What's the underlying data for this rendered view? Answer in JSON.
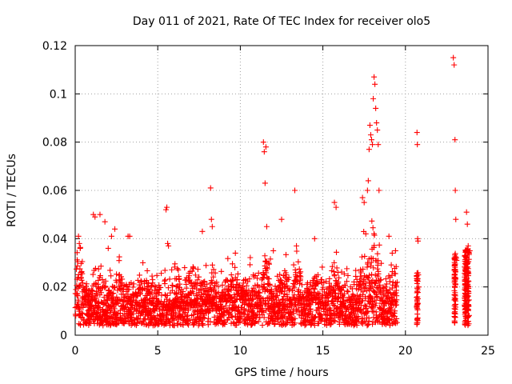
{
  "chart_data": {
    "type": "scatter",
    "title": "Day 011 of 2021, Rate Of TEC Index for receiver olo5",
    "xlabel": "GPS time / hours",
    "ylabel": "ROTI / TECUs",
    "xlim": [
      0,
      25
    ],
    "ylim": [
      0,
      0.12
    ],
    "xticks": [
      0,
      5,
      10,
      15,
      20,
      25
    ],
    "xtick_labels": [
      "0",
      "5",
      "10",
      "15",
      "20",
      "25"
    ],
    "yticks": [
      0,
      0.02,
      0.04,
      0.06,
      0.08,
      0.1,
      0.12
    ],
    "ytick_labels": [
      "0",
      "0.02",
      "0.04",
      "0.06",
      "0.08",
      "0.1",
      "0.12"
    ],
    "grid": true,
    "marker": "+",
    "color": "#ff0000",
    "series": [
      {
        "name": "ROTI",
        "notes": "dense band 0.005-0.025 TECU from 0 to 19.5 h; sparse coverage 20.7 h, 23 h, 23.7-23.9 h",
        "x": [
          0.2,
          0.25,
          0.3,
          1.1,
          1.2,
          1.5,
          1.8,
          2.0,
          2.2,
          2.4,
          3.2,
          3.3,
          4.1,
          5.5,
          5.55,
          5.6,
          5.65,
          7.7,
          8.2,
          8.25,
          8.3,
          9.7,
          11.4,
          11.45,
          11.5,
          11.55,
          11.6,
          12.0,
          12.5,
          13.3,
          13.4,
          14.5,
          15.7,
          15.8,
          17.4,
          17.5,
          17.6,
          17.7,
          17.75,
          17.8,
          17.85,
          17.9,
          17.95,
          18.0,
          18.05,
          18.1,
          18.15,
          18.2,
          18.25,
          18.3,
          18.35,
          18.4,
          19.0,
          19.2,
          19.4,
          20.7,
          20.72,
          20.74,
          20.76,
          20.78,
          20.8,
          22.9,
          22.95,
          23.0,
          23.02,
          23.05,
          23.08,
          23.1,
          23.7,
          23.75,
          23.8,
          23.85,
          23.9
        ],
        "y": [
          0.041,
          0.038,
          0.036,
          0.05,
          0.049,
          0.05,
          0.047,
          0.036,
          0.041,
          0.044,
          0.041,
          0.041,
          0.03,
          0.052,
          0.053,
          0.038,
          0.037,
          0.043,
          0.061,
          0.048,
          0.045,
          0.034,
          0.08,
          0.076,
          0.063,
          0.078,
          0.045,
          0.035,
          0.048,
          0.06,
          0.037,
          0.04,
          0.055,
          0.053,
          0.057,
          0.055,
          0.042,
          0.06,
          0.064,
          0.077,
          0.087,
          0.083,
          0.081,
          0.079,
          0.098,
          0.107,
          0.104,
          0.094,
          0.088,
          0.085,
          0.079,
          0.06,
          0.041,
          0.034,
          0.035,
          0.084,
          0.079,
          0.04,
          0.039,
          0.025,
          0.02,
          0.115,
          0.112,
          0.081,
          0.06,
          0.048,
          0.032,
          0.031,
          0.051,
          0.046,
          0.037,
          0.034,
          0.035
        ]
      }
    ]
  }
}
